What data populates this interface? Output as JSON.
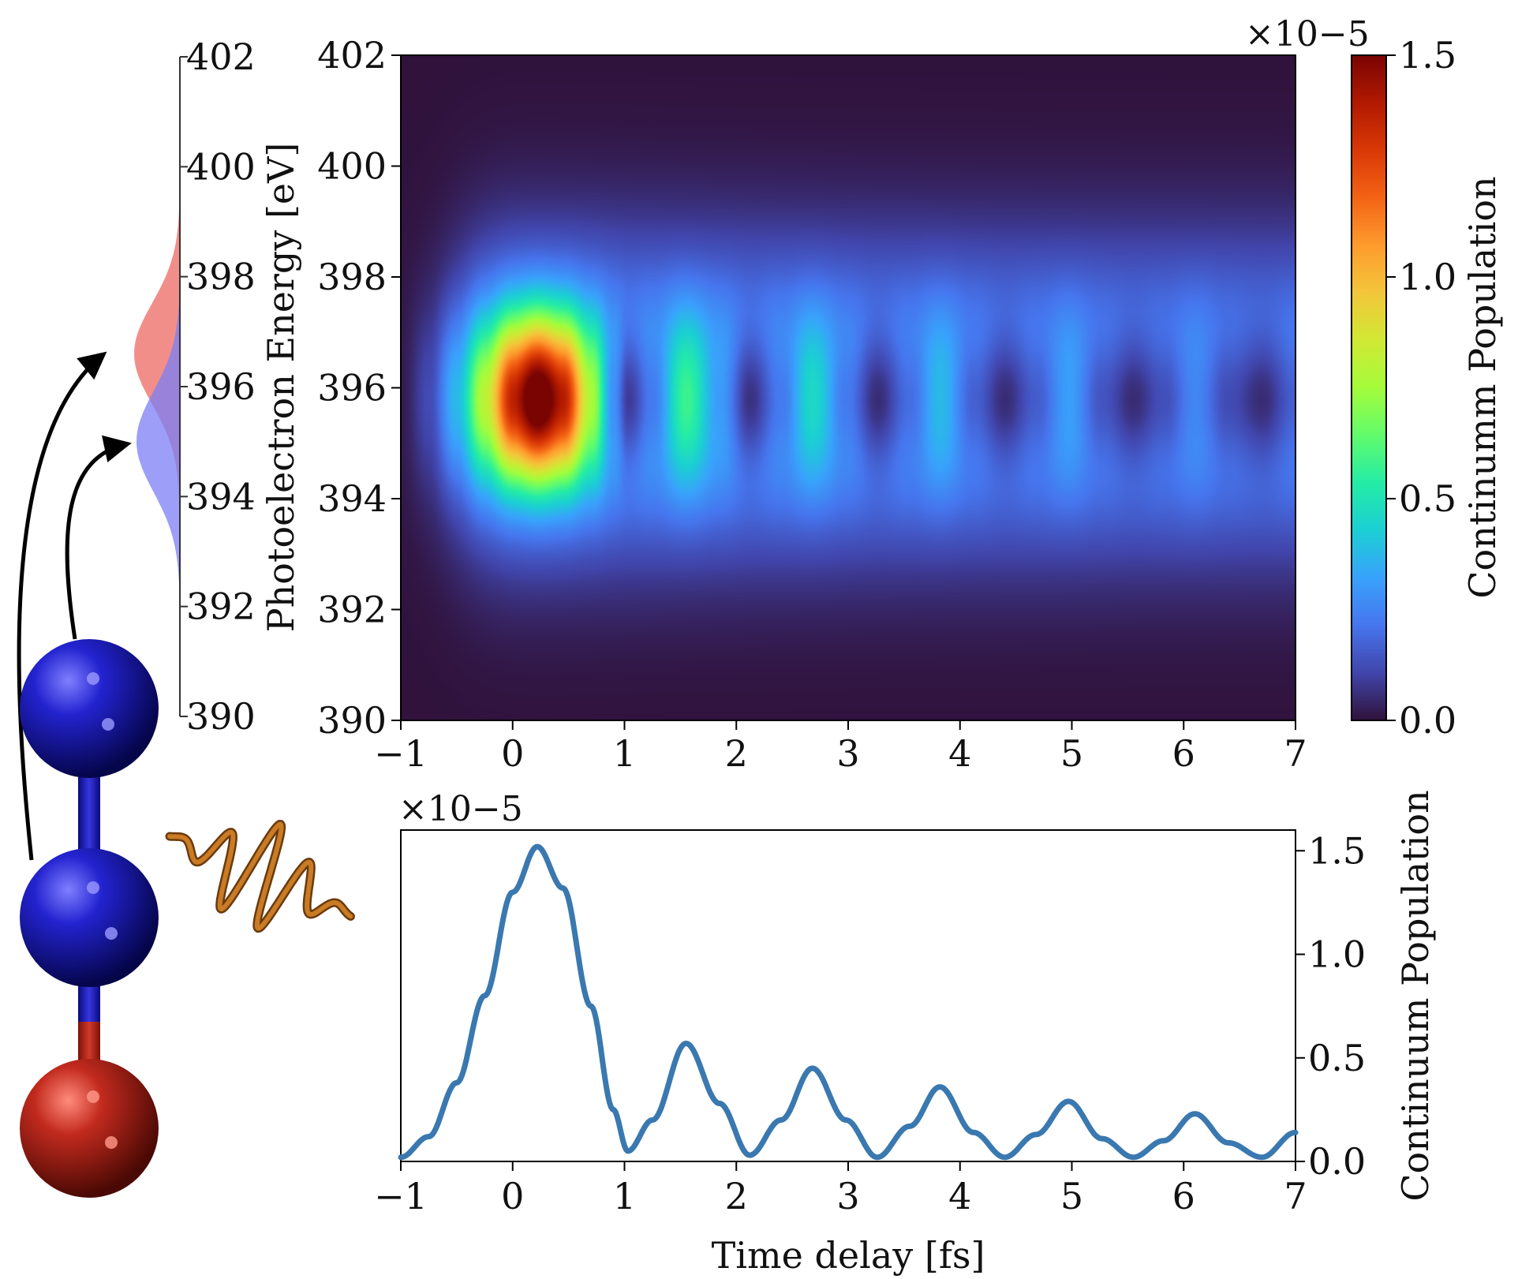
{
  "chart_data": [
    {
      "type": "heatmap",
      "title": "",
      "xlabel": "",
      "ylabel": "Photoelectron Energy [eV]",
      "xlim": [
        -1,
        7
      ],
      "ylim": [
        390,
        402
      ],
      "x_ticks": [
        "−1",
        "0",
        "1",
        "2",
        "3",
        "4",
        "5",
        "6",
        "7"
      ],
      "y_ticks": [
        "390",
        "392",
        "394",
        "396",
        "398",
        "400",
        "402"
      ],
      "colorbar": {
        "label": "Continumm Population",
        "range": [
          0.0,
          1.5
        ],
        "ticks": [
          "0.0",
          "0.5",
          "1.0",
          "1.5"
        ],
        "multiplier": "×10−5",
        "colormap": [
          "#30123b",
          "#4145ab",
          "#4675ed",
          "#39a2fc",
          "#1bcfd4",
          "#24eca6",
          "#61fc6c",
          "#a4fc3b",
          "#d1e834",
          "#f3c63a",
          "#fe9b2d",
          "#f36315",
          "#d93806",
          "#b11901",
          "#7a0402"
        ]
      },
      "peak_energy": 395.8,
      "oscillation_minima_fs": [
        1.0,
        2.12,
        3.26,
        4.4,
        5.55,
        6.7
      ],
      "main_peak_fs": 0.22
    },
    {
      "type": "line",
      "title": "",
      "xlabel": "Time delay [fs]",
      "ylabel": "Continuum Population",
      "multiplier": "×10−5",
      "xlim": [
        -1,
        7
      ],
      "ylim": [
        0,
        1.6
      ],
      "x_ticks": [
        "−1",
        "0",
        "1",
        "2",
        "3",
        "4",
        "5",
        "6",
        "7"
      ],
      "y_ticks": [
        "0.0",
        "0.5",
        "1.0",
        "1.5"
      ],
      "series": [
        {
          "name": "Continuum Population",
          "color": "#3a78b0",
          "x": [
            -1.0,
            -0.75,
            -0.5,
            -0.25,
            0.0,
            0.22,
            0.45,
            0.7,
            0.9,
            1.03,
            1.25,
            1.55,
            1.85,
            2.12,
            2.4,
            2.68,
            2.98,
            3.26,
            3.55,
            3.82,
            4.12,
            4.4,
            4.68,
            4.97,
            5.27,
            5.55,
            5.82,
            6.1,
            6.4,
            6.7,
            7.0
          ],
          "y": [
            0.02,
            0.12,
            0.38,
            0.8,
            1.3,
            1.52,
            1.32,
            0.75,
            0.25,
            0.05,
            0.2,
            0.57,
            0.28,
            0.03,
            0.2,
            0.45,
            0.2,
            0.02,
            0.17,
            0.36,
            0.14,
            0.02,
            0.13,
            0.29,
            0.11,
            0.02,
            0.1,
            0.23,
            0.09,
            0.02,
            0.14
          ]
        }
      ]
    },
    {
      "type": "area",
      "title": "",
      "ylim": [
        390,
        402
      ],
      "y_ticks": [
        "390",
        "392",
        "394",
        "396",
        "398",
        "400",
        "402"
      ],
      "series": [
        {
          "name": "upper atom spectrum",
          "color": "#f07a74",
          "center": 396.6,
          "width": 1.3
        },
        {
          "name": "lower atom spectrum",
          "color": "#7b7ef5",
          "center": 395.0,
          "width": 1.3
        }
      ]
    }
  ],
  "colors": {
    "nitrogen_atom": "#1c1cb4",
    "oxygen_atom": "#b0261c",
    "pulse": "#c97b25",
    "arrow": "#000000"
  }
}
